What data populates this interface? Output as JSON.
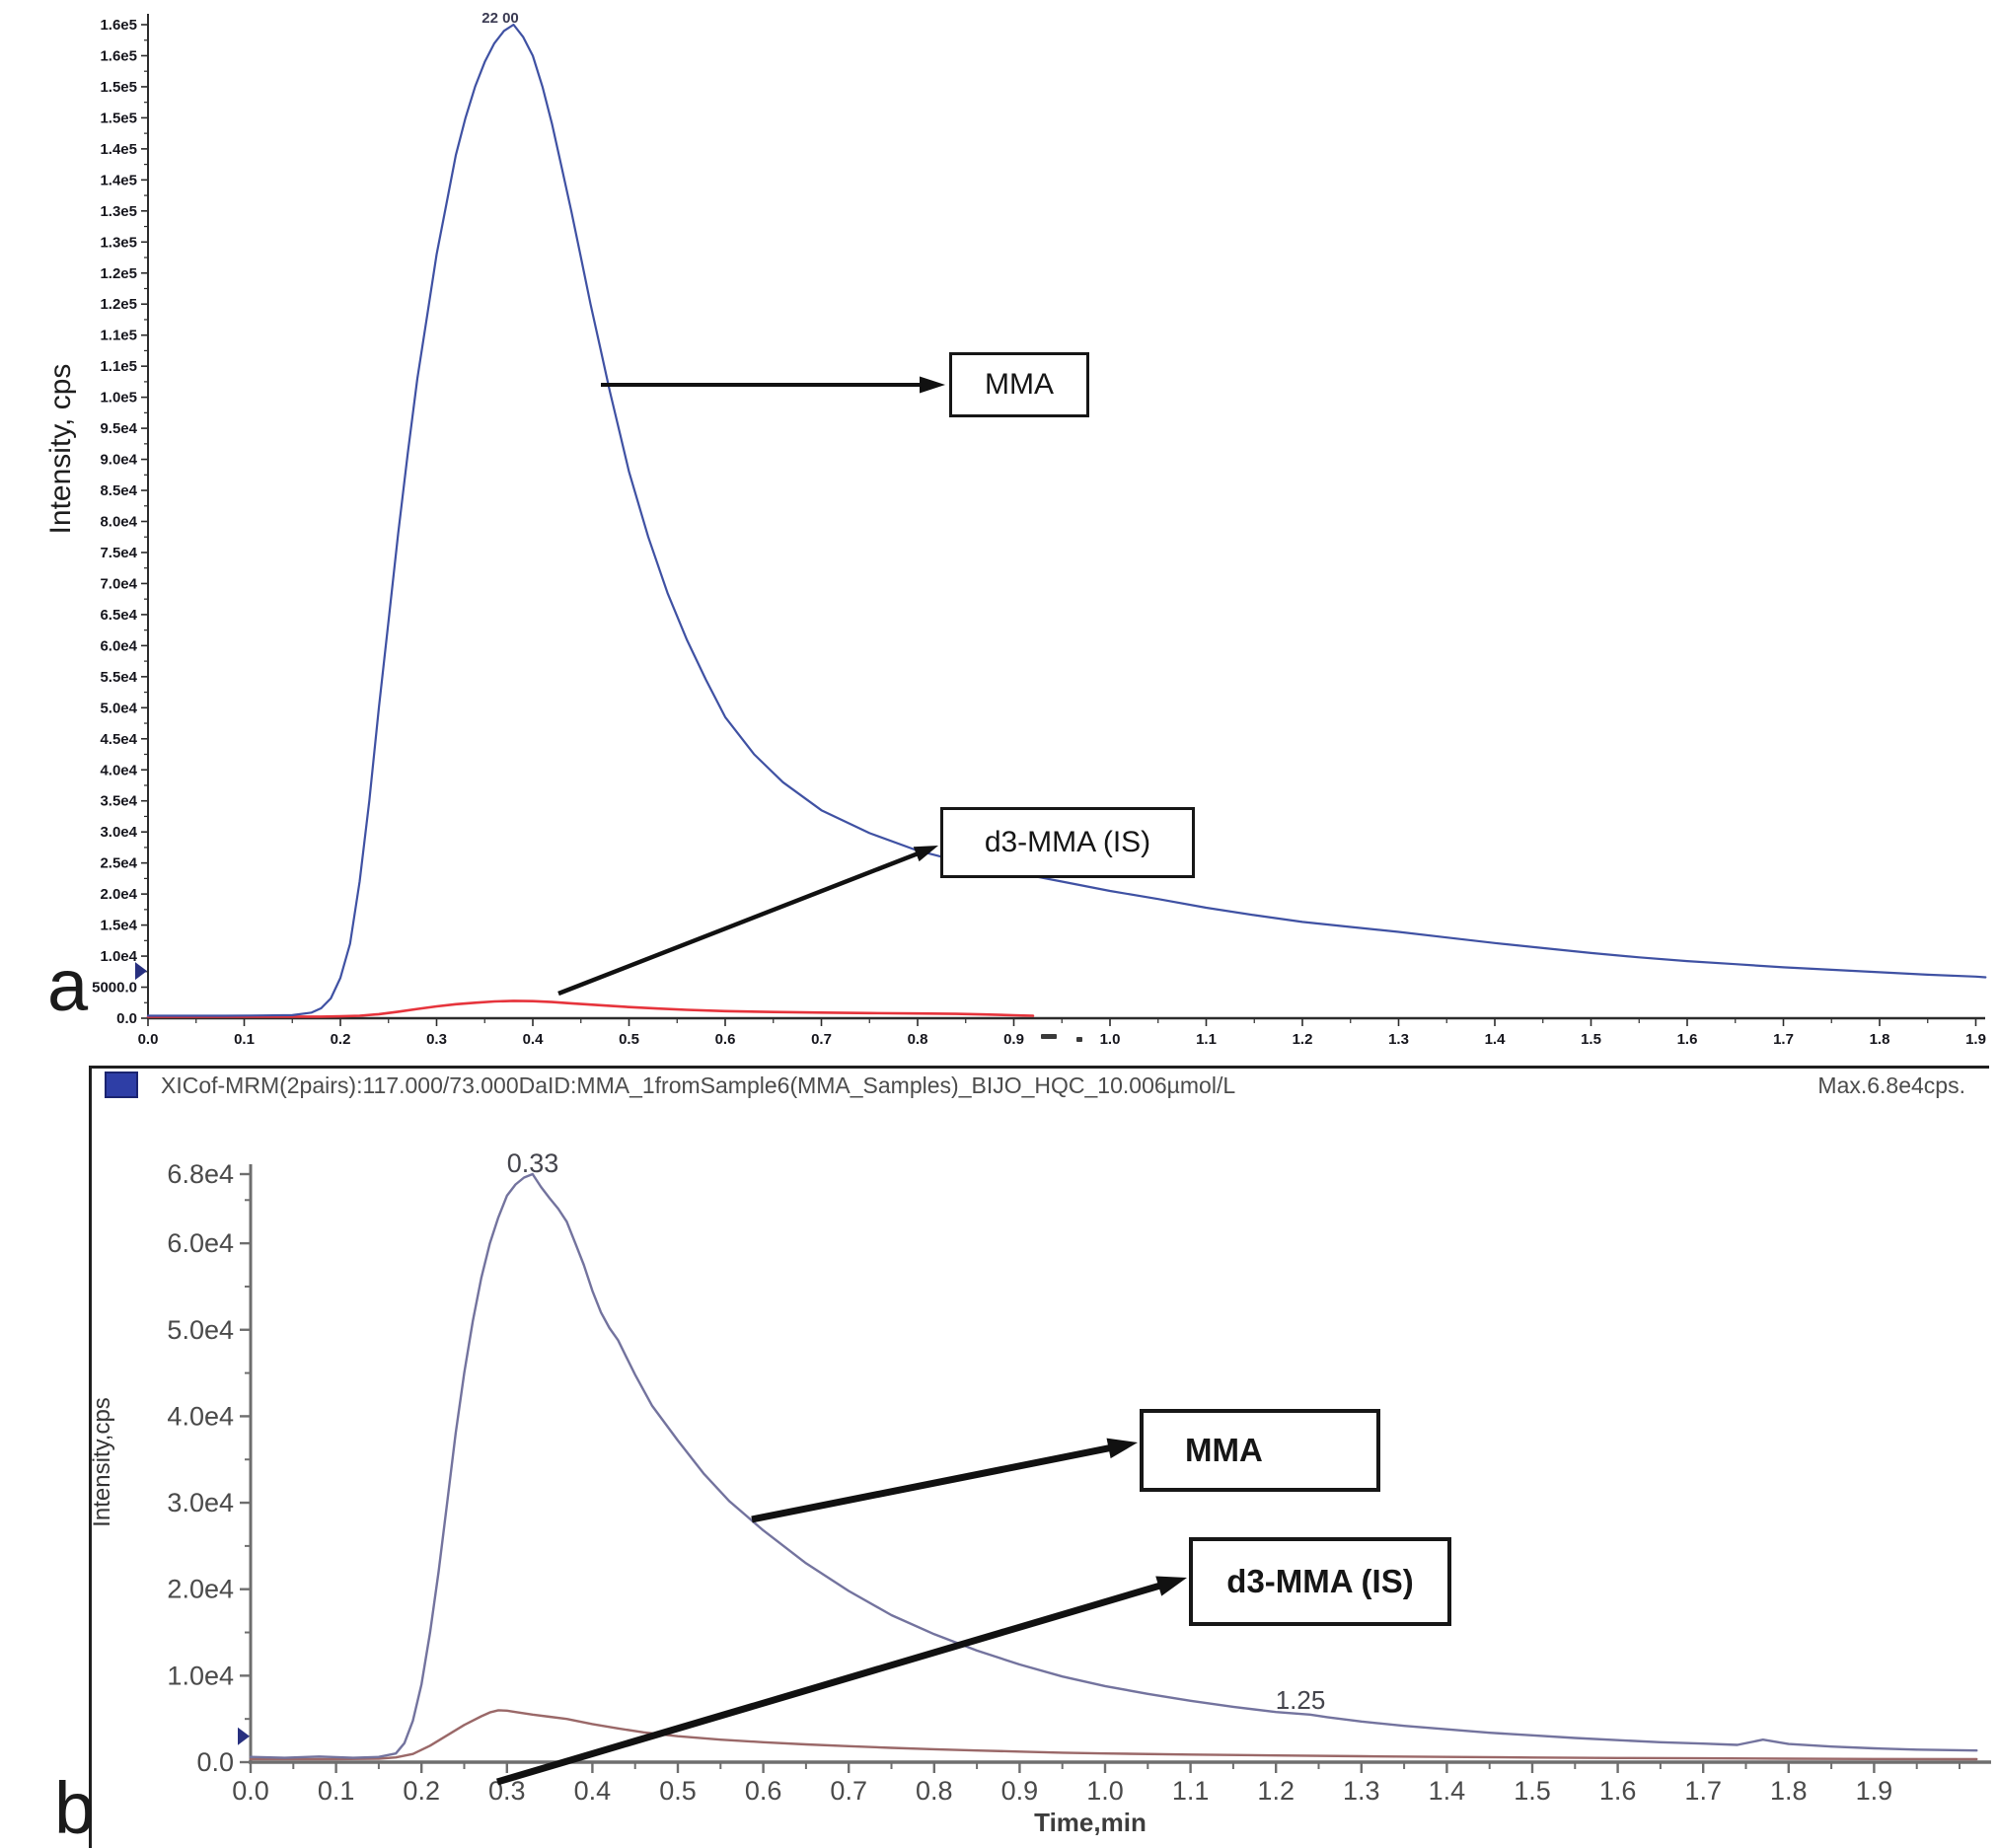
{
  "colors": {
    "a_mma": "#3f51a3",
    "a_d3": "#e6343c",
    "b_mma": "#73739e",
    "b_d3": "#9a6868",
    "axis_a": "#2c2c2c",
    "axis_b": "#6e6e6e",
    "marker": "#28307f",
    "icon_blue": "#2e3ea6",
    "icon_blue_border": "#1b2470",
    "arrow_black": "#111111"
  },
  "chart_data": [
    {
      "panel": "a",
      "panel_letter": "a",
      "type": "line",
      "ylabel": "Intensity, cps",
      "peak_label": "22 00",
      "peak_time": 0.38,
      "annotations": {
        "mma": "MMA",
        "d3": "d3-MMA (IS)"
      },
      "xlim": [
        0.0,
        1.91
      ],
      "ylim": [
        0,
        162000
      ],
      "grid": false,
      "xtick_labels": [
        "0.0",
        "0.1",
        "0.2",
        "0.3",
        "0.4",
        "0.5",
        "0.6",
        "0.7",
        "0.8",
        "0.9",
        "1.0",
        "1.1",
        "1.2",
        "1.3",
        "1.4",
        "1.5",
        "1.6",
        "1.7",
        "1.8",
        "1.9"
      ],
      "ytick_max": 160000,
      "ytick_step": 5000,
      "ytick_labels_top_to_bottom": [
        "1.6e5",
        "1.6e5",
        "1.5e5",
        "1.5e5",
        "1.4e5",
        "1.4e5",
        "1.3e5",
        "1.3e5",
        "1.2e5",
        "1.2e5",
        "1.1e5",
        "1.1e5",
        "1.0e5",
        "9.5e4",
        "9.0e4",
        "8.5e4",
        "8.0e4",
        "7.5e4",
        "7.0e4",
        "6.5e4",
        "6.0e4",
        "5.5e4",
        "5.0e4",
        "4.5e4",
        "4.0e4",
        "3.5e4",
        "3.0e4",
        "2.5e4",
        "2.0e4",
        "1.5e4",
        "1.0e4",
        "5000.0",
        "0.0"
      ],
      "series": [
        {
          "name": "MMA",
          "color_key": "a_mma",
          "points": [
            [
              0.0,
              400
            ],
            [
              0.08,
              400
            ],
            [
              0.12,
              450
            ],
            [
              0.15,
              500
            ],
            [
              0.17,
              900
            ],
            [
              0.18,
              1600
            ],
            [
              0.19,
              3200
            ],
            [
              0.2,
              6500
            ],
            [
              0.21,
              12000
            ],
            [
              0.22,
              22000
            ],
            [
              0.23,
              35000
            ],
            [
              0.24,
              50000
            ],
            [
              0.25,
              64000
            ],
            [
              0.26,
              78000
            ],
            [
              0.27,
              91000
            ],
            [
              0.28,
              103000
            ],
            [
              0.29,
              113000
            ],
            [
              0.3,
              123000
            ],
            [
              0.31,
              131000
            ],
            [
              0.32,
              139000
            ],
            [
              0.33,
              145000
            ],
            [
              0.34,
              150000
            ],
            [
              0.35,
              154000
            ],
            [
              0.36,
              157000
            ],
            [
              0.37,
              159000
            ],
            [
              0.38,
              160000
            ],
            [
              0.39,
              158000
            ],
            [
              0.4,
              155000
            ],
            [
              0.41,
              150000
            ],
            [
              0.42,
              144000
            ],
            [
              0.43,
              137000
            ],
            [
              0.44,
              130000
            ],
            [
              0.45,
              122500
            ],
            [
              0.46,
              115000
            ],
            [
              0.47,
              108000
            ],
            [
              0.48,
              101000
            ],
            [
              0.49,
              94500
            ],
            [
              0.5,
              88000
            ],
            [
              0.52,
              77500
            ],
            [
              0.54,
              68500
            ],
            [
              0.56,
              61000
            ],
            [
              0.58,
              54500
            ],
            [
              0.6,
              48500
            ],
            [
              0.63,
              42500
            ],
            [
              0.66,
              38000
            ],
            [
              0.7,
              33500
            ],
            [
              0.75,
              29800
            ],
            [
              0.8,
              27000
            ],
            [
              0.85,
              25000
            ],
            [
              0.9,
              23500
            ],
            [
              0.95,
              22000
            ],
            [
              1.0,
              20500
            ],
            [
              1.05,
              19200
            ],
            [
              1.1,
              17800
            ],
            [
              1.15,
              16600
            ],
            [
              1.2,
              15500
            ],
            [
              1.25,
              14700
            ],
            [
              1.3,
              13900
            ],
            [
              1.35,
              13000
            ],
            [
              1.4,
              12100
            ],
            [
              1.45,
              11300
            ],
            [
              1.5,
              10500
            ],
            [
              1.55,
              9800
            ],
            [
              1.6,
              9200
            ],
            [
              1.65,
              8700
            ],
            [
              1.7,
              8200
            ],
            [
              1.75,
              7800
            ],
            [
              1.8,
              7400
            ],
            [
              1.85,
              7000
            ],
            [
              1.9,
              6700
            ],
            [
              1.91,
              6600
            ]
          ]
        },
        {
          "name": "d3-MMA (IS)",
          "color_key": "a_d3",
          "points": [
            [
              0.0,
              250
            ],
            [
              0.18,
              250
            ],
            [
              0.2,
              300
            ],
            [
              0.22,
              400
            ],
            [
              0.24,
              650
            ],
            [
              0.26,
              1050
            ],
            [
              0.28,
              1500
            ],
            [
              0.3,
              1900
            ],
            [
              0.32,
              2250
            ],
            [
              0.34,
              2500
            ],
            [
              0.36,
              2700
            ],
            [
              0.38,
              2800
            ],
            [
              0.4,
              2750
            ],
            [
              0.42,
              2600
            ],
            [
              0.44,
              2400
            ],
            [
              0.46,
              2200
            ],
            [
              0.48,
              2000
            ],
            [
              0.5,
              1800
            ],
            [
              0.53,
              1550
            ],
            [
              0.56,
              1350
            ],
            [
              0.6,
              1150
            ],
            [
              0.65,
              1000
            ],
            [
              0.7,
              900
            ],
            [
              0.75,
              820
            ],
            [
              0.8,
              760
            ],
            [
              0.84,
              700
            ],
            [
              0.87,
              600
            ],
            [
              0.9,
              480
            ],
            [
              0.92,
              400
            ]
          ]
        }
      ]
    },
    {
      "panel": "b",
      "panel_letter": "b",
      "type": "line",
      "header": "XICof-MRM(2pairs):117.000/73.000DaID:MMA_1fromSample6(MMA_Samples)_BIJO_HQC_10.006µmol/L",
      "max_label": "Max.6.8e4cps.",
      "ylabel": "Intensity,cps",
      "xlabel": "Time,min",
      "peak_label": "0.33",
      "peak_time": 0.33,
      "tail_label": "1.25",
      "tail_time": 1.25,
      "annotations": {
        "mma": "MMA",
        "d3": "d3-MMA (IS)"
      },
      "xlim": [
        0.0,
        2.03
      ],
      "ylim": [
        0,
        68000
      ],
      "grid": false,
      "xtick_labels": [
        "0.0",
        "0.1",
        "0.2",
        "0.3",
        "0.4",
        "0.5",
        "0.6",
        "0.7",
        "0.8",
        "0.9",
        "1.0",
        "1.1",
        "1.2",
        "1.3",
        "1.4",
        "1.5",
        "1.6",
        "1.7",
        "1.8",
        "1.9"
      ],
      "ytick_values": [
        68000,
        60000,
        50000,
        40000,
        30000,
        20000,
        10000,
        0
      ],
      "ytick_labels": [
        "6.8e4",
        "6.0e4",
        "5.0e4",
        "4.0e4",
        "3.0e4",
        "2.0e4",
        "1.0e4",
        "0.0"
      ],
      "series": [
        {
          "name": "MMA",
          "color_key": "b_mma",
          "points": [
            [
              0.0,
              600
            ],
            [
              0.04,
              500
            ],
            [
              0.08,
              650
            ],
            [
              0.12,
              500
            ],
            [
              0.15,
              600
            ],
            [
              0.17,
              1000
            ],
            [
              0.18,
              2200
            ],
            [
              0.19,
              4800
            ],
            [
              0.2,
              9000
            ],
            [
              0.21,
              15000
            ],
            [
              0.22,
              22000
            ],
            [
              0.23,
              30000
            ],
            [
              0.24,
              38000
            ],
            [
              0.25,
              45000
            ],
            [
              0.26,
              51000
            ],
            [
              0.27,
              56000
            ],
            [
              0.28,
              60000
            ],
            [
              0.29,
              63000
            ],
            [
              0.3,
              65500
            ],
            [
              0.31,
              66800
            ],
            [
              0.32,
              67600
            ],
            [
              0.33,
              68000
            ],
            [
              0.34,
              66500
            ],
            [
              0.35,
              65200
            ],
            [
              0.36,
              64000
            ],
            [
              0.37,
              62500
            ],
            [
              0.38,
              60000
            ],
            [
              0.39,
              57500
            ],
            [
              0.4,
              54500
            ],
            [
              0.41,
              52000
            ],
            [
              0.42,
              50200
            ],
            [
              0.43,
              48800
            ],
            [
              0.44,
              46800
            ],
            [
              0.45,
              44800
            ],
            [
              0.47,
              41200
            ],
            [
              0.5,
              37200
            ],
            [
              0.53,
              33400
            ],
            [
              0.56,
              30200
            ],
            [
              0.6,
              26800
            ],
            [
              0.65,
              23000
            ],
            [
              0.7,
              19800
            ],
            [
              0.75,
              17000
            ],
            [
              0.8,
              14800
            ],
            [
              0.85,
              12900
            ],
            [
              0.9,
              11300
            ],
            [
              0.95,
              9900
            ],
            [
              1.0,
              8800
            ],
            [
              1.05,
              7900
            ],
            [
              1.1,
              7100
            ],
            [
              1.15,
              6400
            ],
            [
              1.2,
              5800
            ],
            [
              1.24,
              5500
            ],
            [
              1.26,
              5200
            ],
            [
              1.3,
              4700
            ],
            [
              1.35,
              4200
            ],
            [
              1.4,
              3800
            ],
            [
              1.45,
              3400
            ],
            [
              1.5,
              3100
            ],
            [
              1.55,
              2800
            ],
            [
              1.6,
              2550
            ],
            [
              1.65,
              2300
            ],
            [
              1.7,
              2150
            ],
            [
              1.74,
              2000
            ],
            [
              1.77,
              2600
            ],
            [
              1.8,
              2100
            ],
            [
              1.85,
              1800
            ],
            [
              1.9,
              1600
            ],
            [
              1.95,
              1450
            ],
            [
              2.02,
              1350
            ]
          ]
        },
        {
          "name": "d3-MMA (IS)",
          "color_key": "b_d3",
          "points": [
            [
              0.0,
              350
            ],
            [
              0.1,
              350
            ],
            [
              0.15,
              400
            ],
            [
              0.17,
              550
            ],
            [
              0.19,
              950
            ],
            [
              0.21,
              1900
            ],
            [
              0.23,
              3100
            ],
            [
              0.25,
              4300
            ],
            [
              0.27,
              5300
            ],
            [
              0.28,
              5750
            ],
            [
              0.29,
              6000
            ],
            [
              0.3,
              5950
            ],
            [
              0.31,
              5800
            ],
            [
              0.33,
              5500
            ],
            [
              0.35,
              5250
            ],
            [
              0.37,
              5000
            ],
            [
              0.4,
              4400
            ],
            [
              0.43,
              3900
            ],
            [
              0.46,
              3450
            ],
            [
              0.5,
              3000
            ],
            [
              0.55,
              2600
            ],
            [
              0.6,
              2300
            ],
            [
              0.65,
              2050
            ],
            [
              0.7,
              1850
            ],
            [
              0.75,
              1650
            ],
            [
              0.8,
              1500
            ],
            [
              0.85,
              1350
            ],
            [
              0.9,
              1220
            ],
            [
              0.95,
              1100
            ],
            [
              1.0,
              1000
            ],
            [
              1.1,
              880
            ],
            [
              1.2,
              780
            ],
            [
              1.3,
              680
            ],
            [
              1.4,
              600
            ],
            [
              1.5,
              540
            ],
            [
              1.6,
              480
            ],
            [
              1.7,
              440
            ],
            [
              1.8,
              400
            ],
            [
              1.9,
              370
            ],
            [
              2.02,
              340
            ]
          ]
        }
      ]
    }
  ]
}
